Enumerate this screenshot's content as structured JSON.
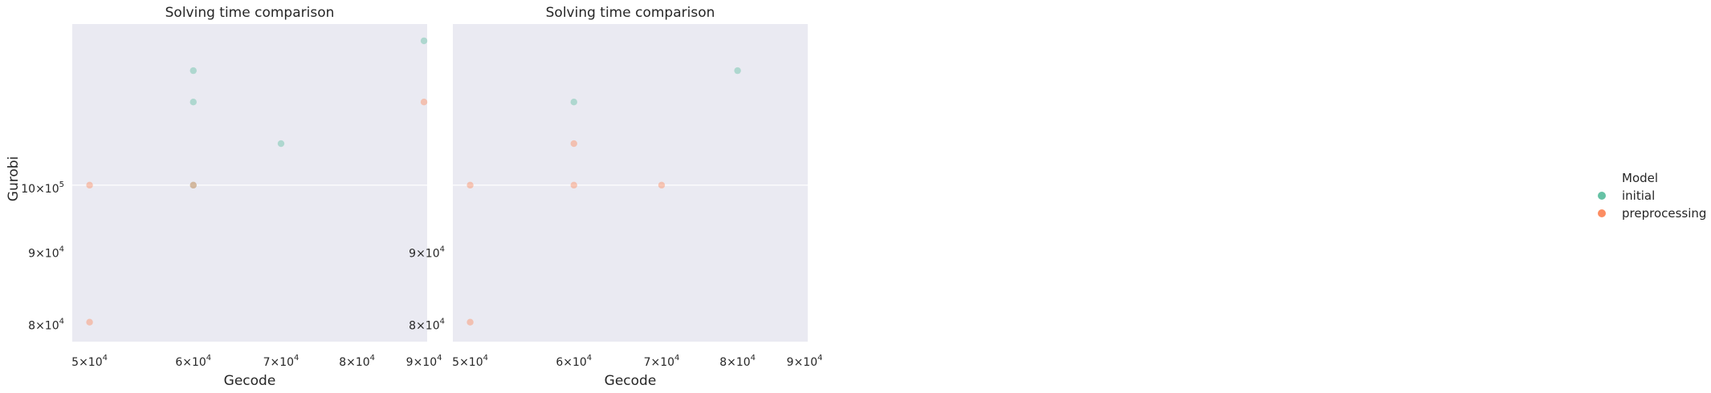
{
  "chart_data": [
    {
      "type": "scatter",
      "title": "Solving time comparison",
      "xlabel": "Gecode",
      "ylabel": "Gurobi",
      "xscale": "log",
      "yscale": "log",
      "xlim": [
        48500,
        90500
      ],
      "ylim": [
        77500,
        130000
      ],
      "grid": true,
      "x_ticks": [
        {
          "base": "5",
          "exp": "4",
          "value": 50000
        },
        {
          "base": "6",
          "exp": "4",
          "value": 60000
        },
        {
          "base": "7",
          "exp": "4",
          "value": 70000
        },
        {
          "base": "8",
          "exp": "4",
          "value": 80000
        },
        {
          "base": "9",
          "exp": "4",
          "value": 90000
        }
      ],
      "y_ticks": [
        {
          "base": "8",
          "exp": "4",
          "value": 80000
        },
        {
          "base": "9",
          "exp": "4",
          "value": 90000
        },
        {
          "base": "10",
          "exp": "5",
          "value": 100000
        }
      ],
      "series": [
        {
          "name": "initial",
          "points": [
            [
              90000,
              126500
            ],
            [
              60000,
              120500
            ],
            [
              60000,
              114500
            ],
            [
              70000,
              107000
            ],
            [
              60000,
              100000
            ]
          ]
        },
        {
          "name": "preprocessing",
          "points": [
            [
              90000,
              114500
            ],
            [
              50000,
              100000
            ],
            [
              60000,
              100000
            ],
            [
              50000,
              80000
            ]
          ]
        }
      ]
    },
    {
      "type": "scatter",
      "title": "Solving time comparison",
      "xlabel": "Gecode",
      "ylabel": "",
      "xscale": "log",
      "yscale": "log",
      "xlim": [
        48500,
        90500
      ],
      "ylim": [
        77500,
        130000
      ],
      "grid": true,
      "x_ticks": [
        {
          "base": "5",
          "exp": "4",
          "value": 50000
        },
        {
          "base": "6",
          "exp": "4",
          "value": 60000
        },
        {
          "base": "7",
          "exp": "4",
          "value": 70000
        },
        {
          "base": "8",
          "exp": "4",
          "value": 80000
        },
        {
          "base": "9",
          "exp": "4",
          "value": 90000
        }
      ],
      "y_ticks": [
        {
          "base": "8",
          "exp": "4",
          "value": 80000
        },
        {
          "base": "9",
          "exp": "4",
          "value": 90000
        }
      ],
      "series": [
        {
          "name": "initial",
          "points": [
            [
              80000,
              120500
            ],
            [
              60000,
              114500
            ]
          ]
        },
        {
          "name": "preprocessing",
          "points": [
            [
              60000,
              107000
            ],
            [
              50000,
              100000
            ],
            [
              60000,
              100000
            ],
            [
              70000,
              100000
            ],
            [
              50000,
              80000
            ]
          ]
        }
      ]
    }
  ],
  "legend": {
    "title": "Model",
    "placement": "center-right",
    "items": [
      {
        "label": "initial",
        "color": "#66c2a5"
      },
      {
        "label": "preprocessing",
        "color": "#fc8d62"
      }
    ]
  },
  "colors": {
    "plot_bg": "#eaeaf2",
    "grid": "#ffffff",
    "initial": "#66c2a5",
    "preprocessing": "#fc8d62"
  }
}
